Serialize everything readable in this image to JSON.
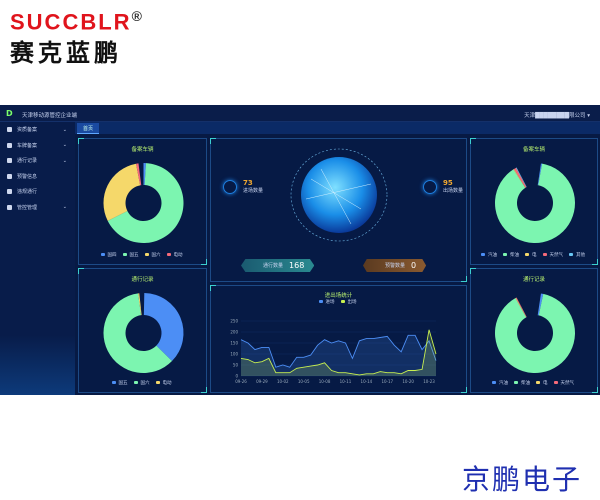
{
  "brand": {
    "en": "SUCCBLR",
    "reg": "®",
    "cn": "赛克蓝鹏",
    "footer": "京鹏电子"
  },
  "header": {
    "logo": "D",
    "title": "天津移动源管控企业端",
    "user": "天津████████限公司",
    "user_caret": "▾"
  },
  "tabs": [
    {
      "label": "首页"
    }
  ],
  "sidebar": {
    "items": [
      {
        "label": "资质备案",
        "icon": "document-icon",
        "chevron": "⌄"
      },
      {
        "label": "车牌备案",
        "icon": "truck-icon",
        "chevron": "⌄"
      },
      {
        "label": "通行记录",
        "icon": "record-icon",
        "chevron": "⌄"
      },
      {
        "label": "预警信息",
        "icon": "alert-icon",
        "chevron": ""
      },
      {
        "label": "违规通行",
        "icon": "pin-icon",
        "chevron": ""
      },
      {
        "label": "管控管理",
        "icon": "settings-icon",
        "chevron": "⌄"
      }
    ]
  },
  "center": {
    "in_count": "73",
    "in_label": "进场数量",
    "out_count": "95",
    "out_label": "出场数量",
    "pass_label": "通行数量",
    "pass_value": "168",
    "warn_label": "预警数量",
    "warn_value": "0"
  },
  "chart_data": [
    {
      "type": "pie",
      "title": "备案车辆",
      "donut": true,
      "categories": [
        "国四",
        "国五",
        "国六",
        "电动"
      ],
      "values": [
        1,
        68,
        30,
        1
      ],
      "colors": [
        "#4c8ef5",
        "#7cf5b0",
        "#f5d86a",
        "#f56a7a"
      ]
    },
    {
      "type": "pie",
      "title": "通行记录",
      "donut": true,
      "categories": [
        "国五",
        "国六",
        "电动"
      ],
      "values": [
        38,
        62,
        0.5
      ],
      "colors": [
        "#4c8ef5",
        "#7cf5b0",
        "#f5d86a"
      ]
    },
    {
      "type": "pie",
      "title": "备案车辆",
      "donut": true,
      "categories": [
        "汽油",
        "柴油",
        "电",
        "天然气",
        "其他"
      ],
      "values": [
        0.5,
        95,
        0.3,
        1,
        0.3
      ],
      "colors": [
        "#4c8ef5",
        "#7cf5b0",
        "#f5d86a",
        "#f56a7a",
        "#6ac8f5"
      ]
    },
    {
      "type": "pie",
      "title": "通行记录",
      "donut": true,
      "categories": [
        "汽油",
        "柴油",
        "电",
        "天然气"
      ],
      "values": [
        1,
        95,
        0.3,
        0.3
      ],
      "colors": [
        "#4c8ef5",
        "#7cf5b0",
        "#f5d86a",
        "#f56a7a"
      ]
    },
    {
      "type": "area",
      "title": "进出场统计",
      "ylim": [
        0,
        250
      ],
      "yticks": [
        0,
        50,
        100,
        150,
        200,
        250
      ],
      "xticks": [
        "09-26",
        "09-29",
        "10-02",
        "10-05",
        "10-08",
        "10-11",
        "10-14",
        "10-17",
        "10-20",
        "10-23"
      ],
      "series": [
        {
          "name": "进场",
          "color": "#4c8ef5",
          "values": [
            165,
            150,
            120,
            130,
            130,
            40,
            50,
            40,
            85,
            85,
            95,
            140,
            165,
            150,
            160,
            150,
            80,
            160,
            170,
            170,
            175,
            180,
            140,
            110,
            185,
            185,
            120,
            160,
            70
          ]
        },
        {
          "name": "出场",
          "color": "#c8f050",
          "values": [
            80,
            75,
            60,
            65,
            80,
            15,
            15,
            15,
            35,
            40,
            45,
            50,
            60,
            25,
            15,
            15,
            10,
            5,
            10,
            10,
            20,
            15,
            15,
            10,
            25,
            25,
            30,
            210,
            100
          ]
        }
      ]
    }
  ]
}
